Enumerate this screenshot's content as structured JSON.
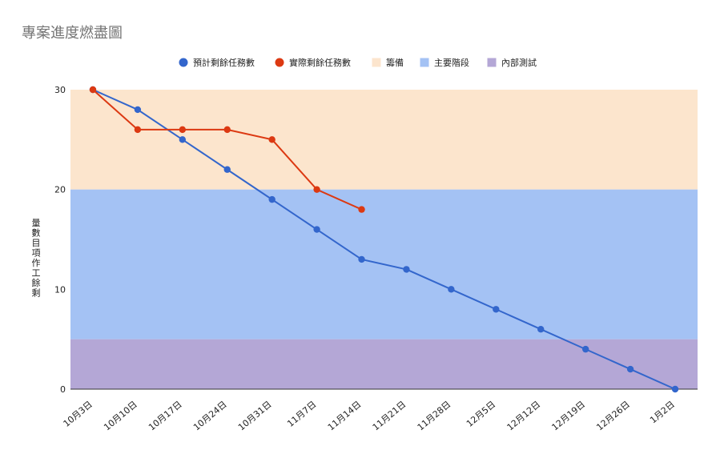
{
  "chart_data": {
    "type": "line",
    "title": "專案進度燃盡圖",
    "xlabel": "",
    "ylabel": "剩餘工作項目數量",
    "categories": [
      "10月3日",
      "10月10日",
      "10月17日",
      "10月24日",
      "10月31日",
      "11月7日",
      "11月14日",
      "11月21日",
      "11月28日",
      "12月5日",
      "12月12日",
      "12月19日",
      "12月26日",
      "1月2日"
    ],
    "ylim": [
      0,
      30
    ],
    "yticks": [
      0,
      10,
      20,
      30
    ],
    "grid": false,
    "legend_position": "top",
    "series": [
      {
        "name": "預計剩餘任務數",
        "color": "#3366cc",
        "values": [
          30,
          28,
          25,
          22,
          19,
          16,
          13,
          12,
          10,
          8,
          6,
          4,
          2,
          0
        ]
      },
      {
        "name": "實際剩餘任務數",
        "color": "#dc3912",
        "values": [
          30,
          26,
          26,
          26,
          25,
          20,
          18,
          null,
          null,
          null,
          null,
          null,
          null,
          null
        ]
      }
    ],
    "bands": [
      {
        "name": "籌備",
        "color": "#fce5cd",
        "from": 20,
        "to": 30
      },
      {
        "name": "主要階段",
        "color": "#a4c2f4",
        "from": 5,
        "to": 20
      },
      {
        "name": "內部測試",
        "color": "#b4a7d6",
        "from": 0,
        "to": 5
      }
    ]
  }
}
